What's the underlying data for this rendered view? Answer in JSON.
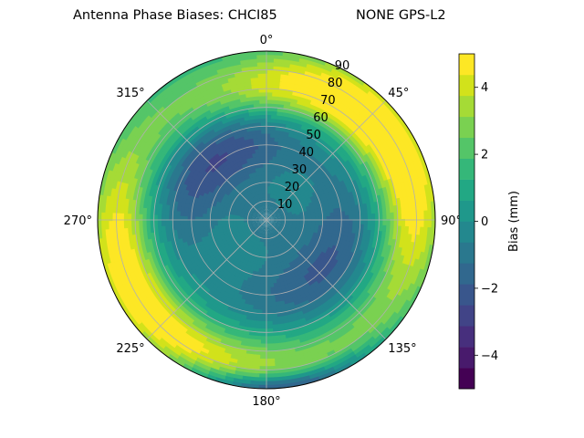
{
  "chart_data": {
    "type": "polar-contour",
    "title_left": "Antenna Phase Biases: CHCI85",
    "title_right": "NONE GPS-L2",
    "azimuth_ticks": [
      "0°",
      "45°",
      "90°",
      "135°",
      "180°",
      "225°",
      "270°",
      "315°"
    ],
    "radial_ticks": [
      "10",
      "20",
      "30",
      "40",
      "50",
      "60",
      "70",
      "80",
      "90"
    ],
    "colorbar": {
      "label": "Bias (mm)",
      "ticks": [
        "−4",
        "−2",
        "0",
        "2",
        "4"
      ],
      "range": [
        -5,
        5
      ],
      "levels": [
        -5,
        -4.375,
        -3.75,
        -3.125,
        -2.5,
        -1.875,
        -1.25,
        -0.625,
        0,
        0.625,
        1.25,
        1.875,
        2.5,
        3.125,
        3.75,
        4.375,
        5
      ],
      "colors": [
        "#440154",
        "#481a6c",
        "#472f7d",
        "#414487",
        "#39568c",
        "#31688e",
        "#2a788e",
        "#23888e",
        "#1f988b",
        "#22a884",
        "#35b779",
        "#54c568",
        "#7ad151",
        "#a5db36",
        "#d2e21b",
        "#fde725"
      ]
    },
    "field_model": {
      "rings": [
        {
          "zenith_deg": 80,
          "az_deg": 60,
          "amplitude_mm": 4.2,
          "az_width_deg": 42,
          "zen_width_deg": 12
        },
        {
          "zenith_deg": 80,
          "az_deg": 245,
          "amplitude_mm": 4.2,
          "az_width_deg": 45,
          "zen_width_deg": 12
        },
        {
          "zenith_deg": 68,
          "az_deg": 10,
          "amplitude_mm": 2.6,
          "az_width_deg": 40,
          "zen_width_deg": 11
        },
        {
          "zenith_deg": 75,
          "az_deg": 160,
          "amplitude_mm": 1.4,
          "az_width_deg": 70,
          "zen_width_deg": 12
        }
      ],
      "troughs": [
        {
          "zenith_deg": 42,
          "az_deg": 320,
          "amplitude_mm": -3.2,
          "az_width_deg": 45,
          "zen_width_deg": 15
        },
        {
          "zenith_deg": 40,
          "az_deg": 130,
          "amplitude_mm": -2.6,
          "az_width_deg": 55,
          "zen_width_deg": 15
        },
        {
          "zenith_deg": 90,
          "az_deg": 175,
          "amplitude_mm": -4.0,
          "az_width_deg": 22,
          "zen_width_deg": 5
        }
      ],
      "background_mm": 0.6,
      "center_mm": -1.4
    }
  }
}
